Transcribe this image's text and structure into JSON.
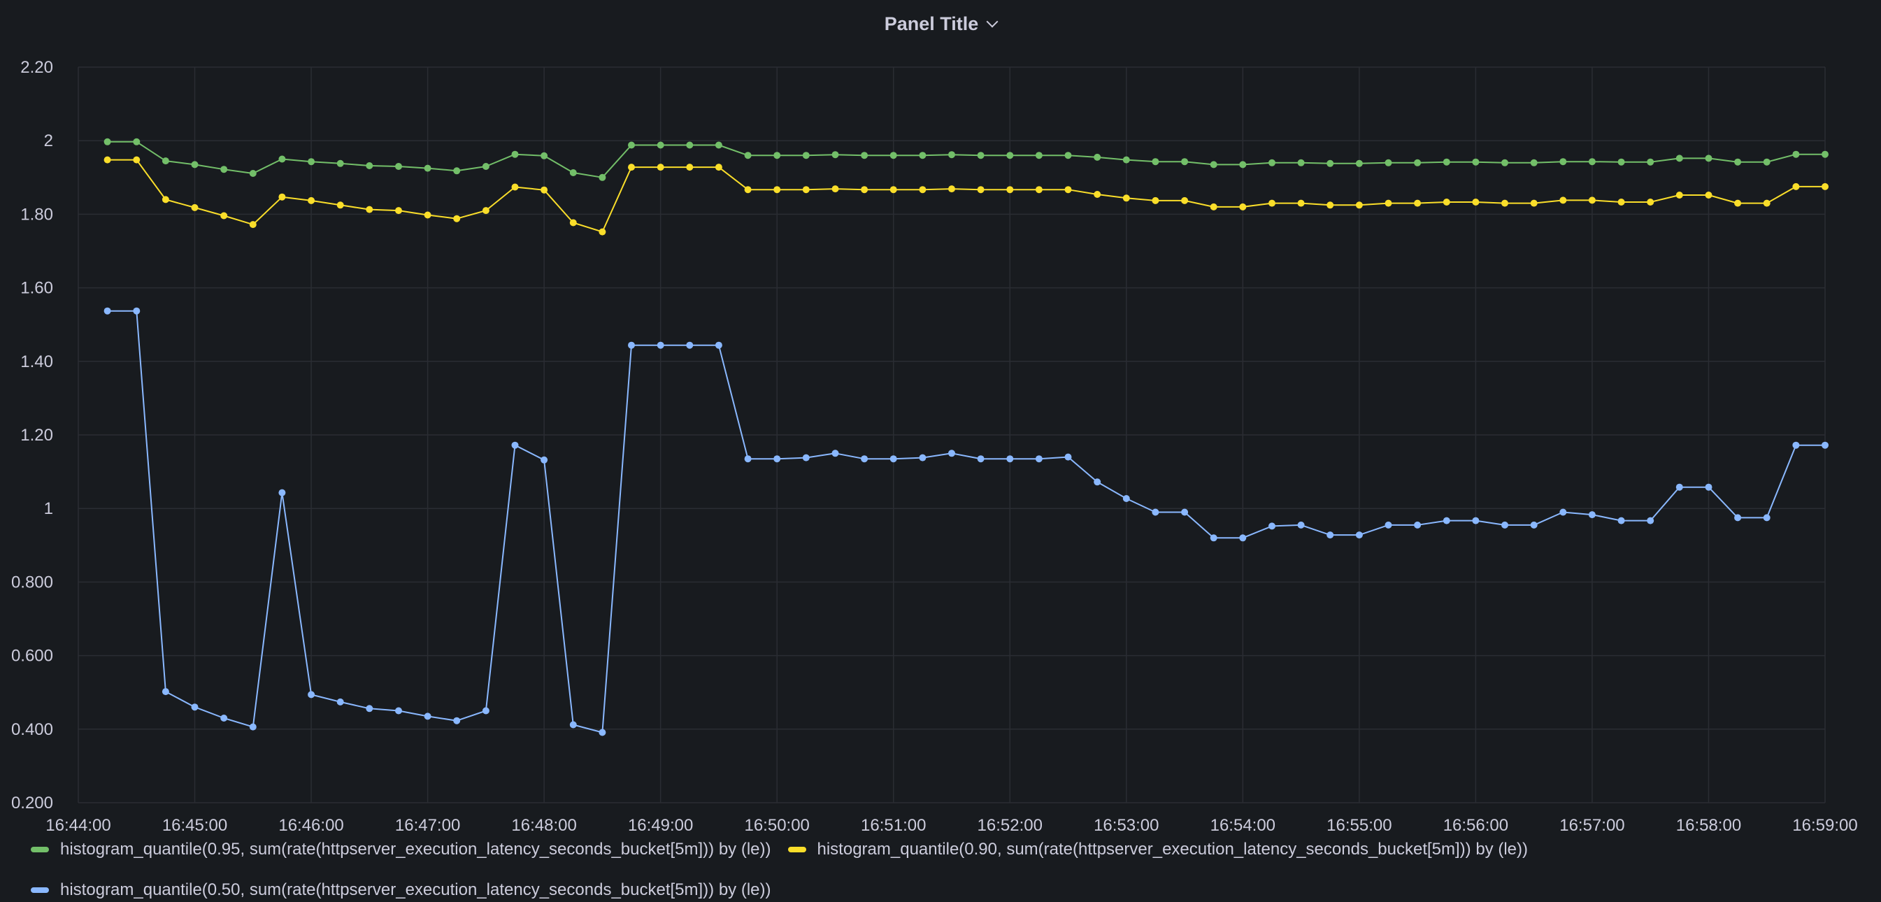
{
  "panel": {
    "title": "Panel Title"
  },
  "chart_data": {
    "type": "line",
    "title": "Panel Title",
    "xlabel": "",
    "ylabel": "",
    "ylim": [
      0.2,
      2.2
    ],
    "y_ticks": [
      "0.200",
      "0.400",
      "0.600",
      "0.800",
      "1",
      "1.20",
      "1.40",
      "1.60",
      "1.80",
      "2",
      "2.20"
    ],
    "x_ticks": [
      "16:44:00",
      "16:45:00",
      "16:46:00",
      "16:47:00",
      "16:48:00",
      "16:49:00",
      "16:50:00",
      "16:51:00",
      "16:52:00",
      "16:53:00",
      "16:54:00",
      "16:55:00",
      "16:56:00",
      "16:57:00",
      "16:58:00",
      "16:59:00"
    ],
    "xlim": [
      "16:44:00",
      "16:59:00"
    ],
    "x": [
      "16:44:15",
      "16:44:30",
      "16:44:45",
      "16:45:00",
      "16:45:15",
      "16:45:30",
      "16:45:45",
      "16:46:00",
      "16:46:15",
      "16:46:30",
      "16:46:45",
      "16:47:00",
      "16:47:15",
      "16:47:30",
      "16:47:45",
      "16:48:00",
      "16:48:15",
      "16:48:30",
      "16:48:45",
      "16:49:00",
      "16:49:15",
      "16:49:30",
      "16:49:45",
      "16:50:00",
      "16:50:15",
      "16:50:30",
      "16:50:45",
      "16:51:00",
      "16:51:15",
      "16:51:30",
      "16:51:45",
      "16:52:00",
      "16:52:15",
      "16:52:30",
      "16:52:45",
      "16:53:00",
      "16:53:15",
      "16:53:30",
      "16:53:45",
      "16:54:00",
      "16:54:15",
      "16:54:30",
      "16:54:45",
      "16:55:00",
      "16:55:15",
      "16:55:30",
      "16:55:45",
      "16:56:00",
      "16:56:15",
      "16:56:30",
      "16:56:45",
      "16:57:00",
      "16:57:15",
      "16:57:30",
      "16:57:45",
      "16:58:00",
      "16:58:15",
      "16:58:30",
      "16:58:45",
      "16:59:00"
    ],
    "series": [
      {
        "name": "histogram_quantile(0.95, sum(rate(httpserver_execution_latency_seconds_bucket[5m])) by (le))",
        "color": "#73bf69",
        "values": [
          1.997,
          1.997,
          1.945,
          1.935,
          1.922,
          1.911,
          1.95,
          1.943,
          1.938,
          1.932,
          1.93,
          1.925,
          1.918,
          1.93,
          1.963,
          1.959,
          1.913,
          1.9,
          1.988,
          1.988,
          1.988,
          1.988,
          1.96,
          1.96,
          1.96,
          1.962,
          1.96,
          1.96,
          1.96,
          1.962,
          1.96,
          1.96,
          1.96,
          1.96,
          1.955,
          1.948,
          1.943,
          1.943,
          1.935,
          1.935,
          1.94,
          1.94,
          1.938,
          1.938,
          1.94,
          1.94,
          1.942,
          1.942,
          1.94,
          1.94,
          1.943,
          1.943,
          1.942,
          1.942,
          1.952,
          1.952,
          1.942,
          1.942,
          1.963,
          1.963
        ]
      },
      {
        "name": "histogram_quantile(0.90, sum(rate(httpserver_execution_latency_seconds_bucket[5m])) by (le))",
        "color": "#fade2a",
        "values": [
          1.948,
          1.948,
          1.84,
          1.818,
          1.796,
          1.772,
          1.847,
          1.837,
          1.825,
          1.813,
          1.81,
          1.798,
          1.788,
          1.81,
          1.874,
          1.866,
          1.777,
          1.752,
          1.928,
          1.928,
          1.928,
          1.928,
          1.867,
          1.867,
          1.867,
          1.869,
          1.867,
          1.867,
          1.867,
          1.869,
          1.867,
          1.867,
          1.867,
          1.867,
          1.854,
          1.844,
          1.837,
          1.837,
          1.82,
          1.82,
          1.83,
          1.83,
          1.825,
          1.825,
          1.83,
          1.83,
          1.833,
          1.833,
          1.83,
          1.83,
          1.838,
          1.838,
          1.833,
          1.833,
          1.852,
          1.852,
          1.83,
          1.83,
          1.875,
          1.875
        ]
      },
      {
        "name": "histogram_quantile(0.50, sum(rate(httpserver_execution_latency_seconds_bucket[5m])) by (le))",
        "color": "#8ab8ff",
        "values": [
          1.537,
          1.537,
          0.502,
          0.46,
          0.43,
          0.406,
          1.043,
          0.494,
          0.474,
          0.456,
          0.45,
          0.435,
          0.423,
          0.45,
          1.172,
          1.132,
          0.412,
          0.391,
          1.444,
          1.444,
          1.444,
          1.444,
          1.135,
          1.135,
          1.138,
          1.15,
          1.135,
          1.135,
          1.138,
          1.15,
          1.135,
          1.135,
          1.135,
          1.14,
          1.072,
          1.027,
          0.99,
          0.99,
          0.92,
          0.92,
          0.952,
          0.955,
          0.928,
          0.928,
          0.955,
          0.955,
          0.967,
          0.967,
          0.955,
          0.955,
          0.99,
          0.983,
          0.967,
          0.967,
          1.058,
          1.058,
          0.975,
          0.975,
          1.172,
          1.172
        ]
      }
    ],
    "grid": true,
    "legend_position": "bottom"
  }
}
